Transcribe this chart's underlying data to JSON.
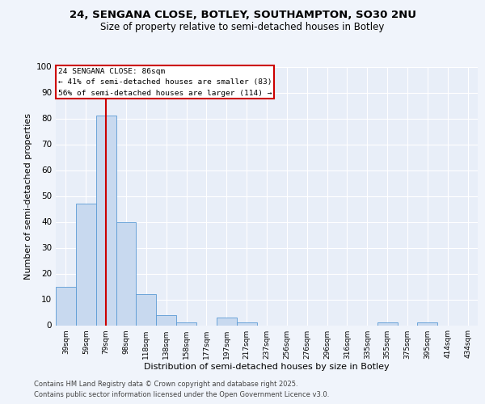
{
  "title_line1": "24, SENGANA CLOSE, BOTLEY, SOUTHAMPTON, SO30 2NU",
  "title_line2": "Size of property relative to semi-detached houses in Botley",
  "xlabel": "Distribution of semi-detached houses by size in Botley",
  "ylabel": "Number of semi-detached properties",
  "categories": [
    "39sqm",
    "59sqm",
    "79sqm",
    "98sqm",
    "118sqm",
    "138sqm",
    "158sqm",
    "177sqm",
    "197sqm",
    "217sqm",
    "237sqm",
    "256sqm",
    "276sqm",
    "296sqm",
    "316sqm",
    "335sqm",
    "355sqm",
    "375sqm",
    "395sqm",
    "414sqm",
    "434sqm"
  ],
  "values": [
    15,
    47,
    81,
    40,
    12,
    4,
    1,
    0,
    3,
    1,
    0,
    0,
    0,
    0,
    0,
    0,
    1,
    0,
    1,
    0,
    0
  ],
  "bar_color": "#c8d9ef",
  "bar_edge_color": "#5b9bd5",
  "red_line_index": 2,
  "annotation_title": "24 SENGANA CLOSE: 86sqm",
  "annotation_line1": "← 41% of semi-detached houses are smaller (83)",
  "annotation_line2": "56% of semi-detached houses are larger (114) →",
  "annotation_box_color": "#ffffff",
  "annotation_box_edge": "#cc0000",
  "ylim": [
    0,
    100
  ],
  "yticks": [
    0,
    10,
    20,
    30,
    40,
    50,
    60,
    70,
    80,
    90,
    100
  ],
  "footer_line1": "Contains HM Land Registry data © Crown copyright and database right 2025.",
  "footer_line2": "Contains public sector information licensed under the Open Government Licence v3.0.",
  "fig_bg_color": "#f0f4fb",
  "plot_bg_color": "#e8eef8"
}
